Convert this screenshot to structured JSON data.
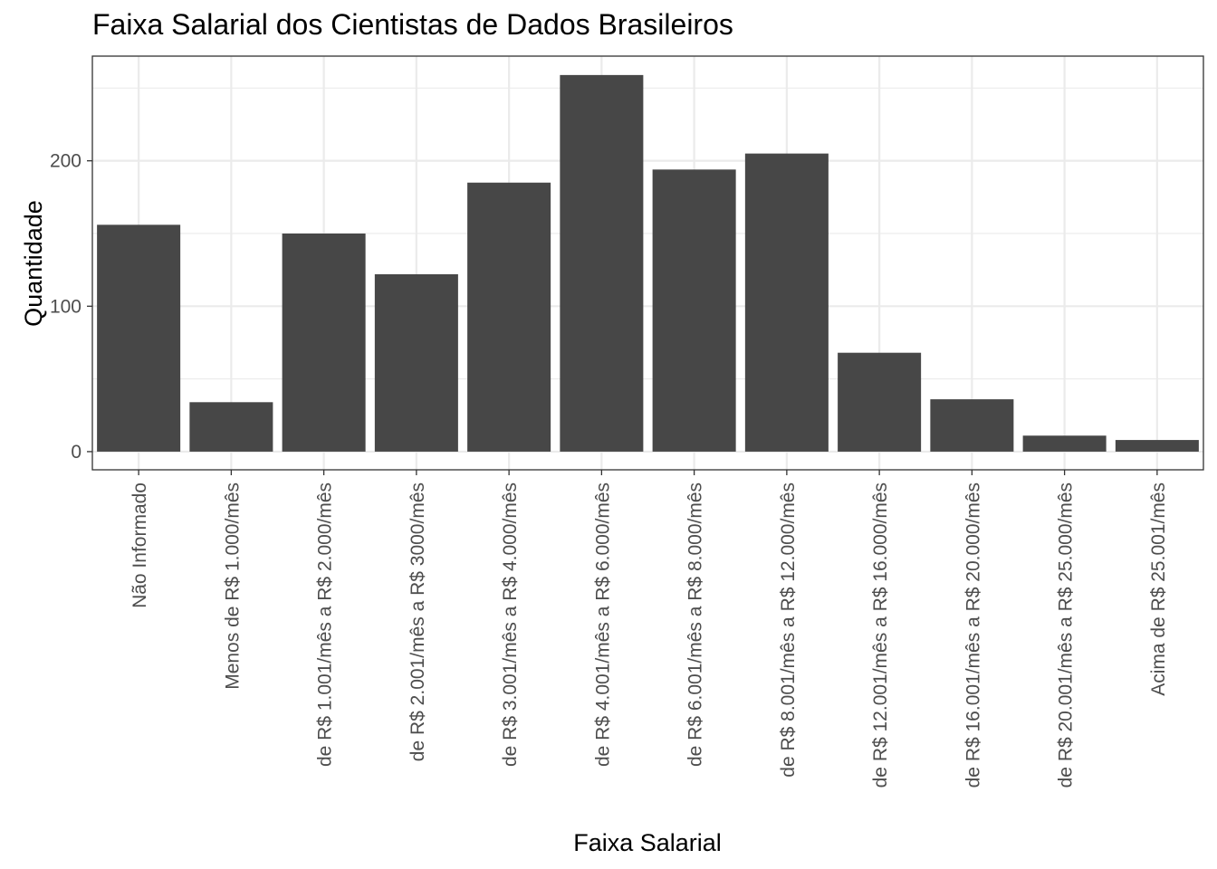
{
  "chart_data": {
    "type": "bar",
    "title": "Faixa Salarial dos Cientistas de Dados Brasileiros",
    "xlabel": "Faixa Salarial",
    "ylabel": "Quantidade",
    "categories": [
      "Não Informado",
      "Menos de R$ 1.000/mês",
      "de R$ 1.001/mês a R$ 2.000/mês",
      "de R$ 2.001/mês a R$ 3000/mês",
      "de R$ 3.001/mês a R$ 4.000/mês",
      "de R$ 4.001/mês a R$ 6.000/mês",
      "de R$ 6.001/mês a R$ 8.000/mês",
      "de R$ 8.001/mês a R$ 12.000/mês",
      "de R$ 12.001/mês a R$ 16.000/mês",
      "de R$ 16.001/mês a R$ 20.000/mês",
      "de R$ 20.001/mês a R$ 25.000/mês",
      "Acima de R$ 25.001/mês"
    ],
    "values": [
      156,
      34,
      150,
      122,
      185,
      259,
      194,
      205,
      68,
      36,
      11,
      8
    ],
    "yticks": [
      "0",
      "100",
      "200"
    ],
    "ylim": [
      -12.5,
      272
    ],
    "grid": true,
    "bar_color": "#474747",
    "grid_color": "#ebebeb",
    "panel_border_color": "#333333"
  }
}
